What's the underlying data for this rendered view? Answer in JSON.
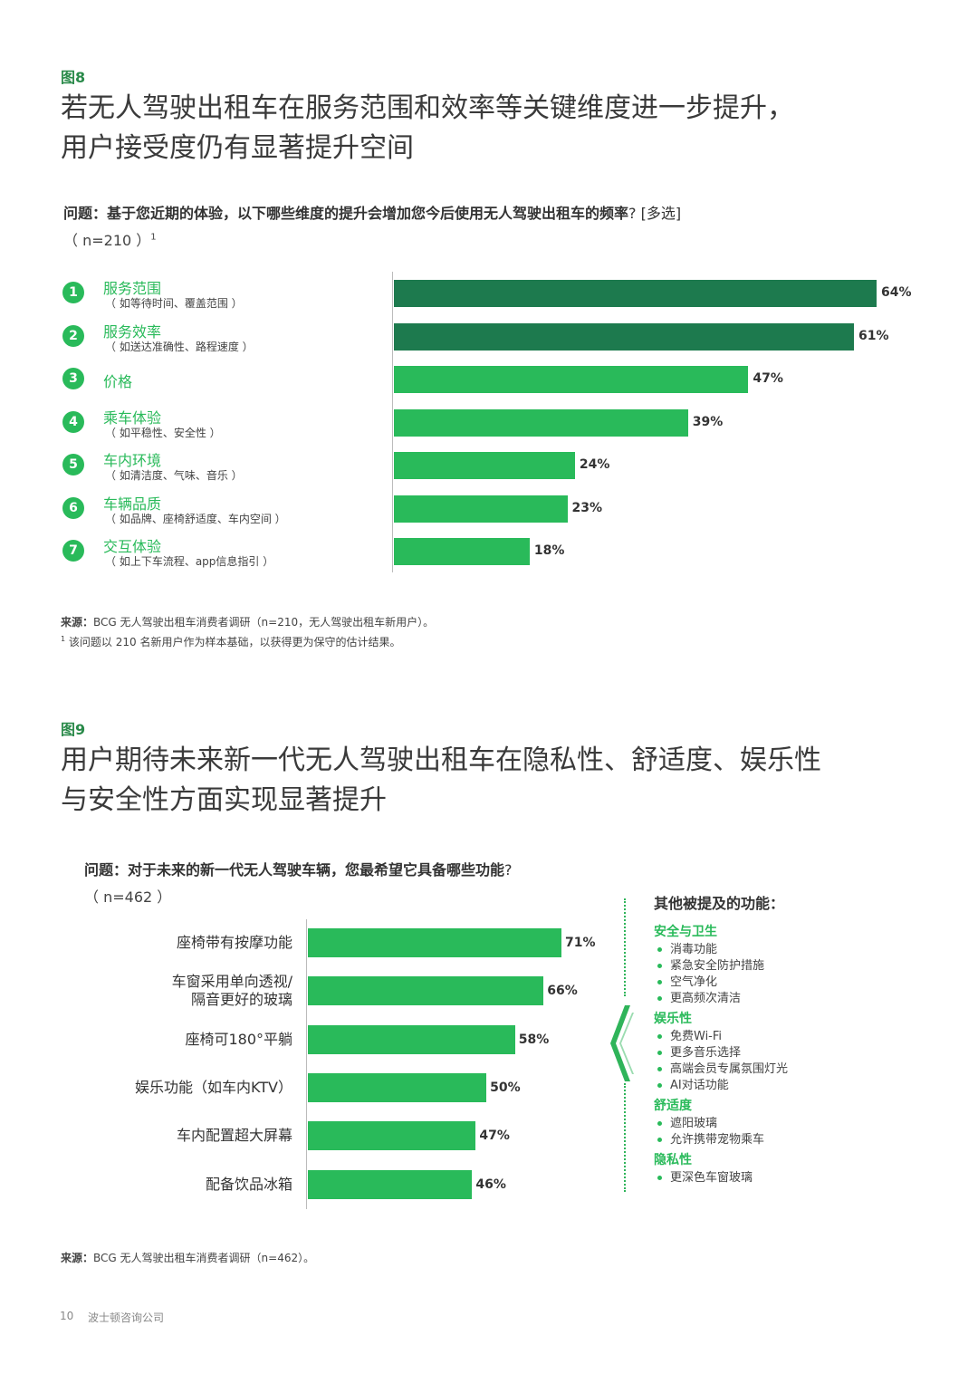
{
  "fig8": {
    "label": "图8",
    "headline_line1": "若无人驾驶出租车在服务范围和效率等关键维度进一步提升，",
    "headline_line2": "用户接受度仍有显著提升空间",
    "question": "问题：基于您近期的体验，以下哪些维度的提升会增加您今后使用无人驾驶出租车的频率",
    "question_tail": "? [多选]",
    "n_text": "（ n=210 ）",
    "n_sup": "1",
    "source_label": "来源：",
    "source_text": "BCG 无人驾驶出租车消费者调研（n=210，无人驾驶出租车新用户）。",
    "footnote_sup": "1",
    "footnote_text": "该问题以 210 名新用户作为样本基础，以获得更为保守的估计结果。",
    "colors": {
      "dark": "#1d7a4e",
      "light": "#29ba5a"
    }
  },
  "fig9": {
    "label": "图9",
    "headline_line1": "用户期待未来新一代无人驾驶出租车在隐私性、舒适度、娱乐性",
    "headline_line2": "与安全性方面实现显著提升",
    "question": "问题：对于未来的新一代无人驾驶车辆，您最希望它具备哪些功能",
    "question_tail": "?",
    "n_text": "（ n=462 ）",
    "source_label": "来源：",
    "source_text": "BCG 无人驾驶出租车消费者调研（n=462）。",
    "side_title": "其他被提及的功能：",
    "side_groups": [
      {
        "title": "安全与卫生",
        "items": [
          "消毒功能",
          "紧急安全防护措施",
          "空气净化",
          "更高频次清洁"
        ]
      },
      {
        "title": "娱乐性",
        "items": [
          "免费Wi-Fi",
          "更多音乐选择",
          "高端会员专属氛围灯光",
          "AI对话功能"
        ]
      },
      {
        "title": "舒适度",
        "items": [
          "遮阳玻璃",
          "允许携带宠物乘车"
        ]
      },
      {
        "title": "隐私性",
        "items": [
          "更深色车窗玻璃"
        ]
      }
    ]
  },
  "chart_data": [
    {
      "type": "bar",
      "orientation": "horizontal",
      "categories": [
        "服务范围",
        "服务效率",
        "价格",
        "乘车体验",
        "车内环境",
        "车辆品质",
        "交互体验"
      ],
      "ranks": [
        "1",
        "2",
        "3",
        "4",
        "5",
        "6",
        "7"
      ],
      "subtitles": [
        "（ 如等待时间、覆盖范围 ）",
        "（ 如送达准确性、路程速度 ）",
        "",
        "（ 如平稳性、安全性 ）",
        "（ 如清洁度、气味、音乐 ）",
        "（ 如品牌、座椅舒适度、车内空间 ）",
        "（ 如上下车流程、app信息指引 ）"
      ],
      "values": [
        64,
        61,
        47,
        39,
        24,
        23,
        18
      ],
      "labels": [
        "64%",
        "61%",
        "47%",
        "39%",
        "24%",
        "23%",
        "18%"
      ],
      "highlight": [
        true,
        true,
        false,
        false,
        false,
        false,
        false
      ],
      "unit": "%",
      "xlim": [
        0,
        64
      ]
    },
    {
      "type": "bar",
      "orientation": "horizontal",
      "categories": [
        "座椅带有按摩功能",
        "车窗采用单向透视/\n隔音更好的玻璃",
        "座椅可180°平躺",
        "娱乐功能（如车内KTV）",
        "车内配置超大屏幕",
        "配备饮品冰箱"
      ],
      "values": [
        71,
        66,
        58,
        50,
        47,
        46
      ],
      "labels": [
        "71%",
        "66%",
        "58%",
        "50%",
        "47%",
        "46%"
      ],
      "unit": "%",
      "xlim": [
        0,
        71
      ]
    }
  ],
  "footer": {
    "page_number": "10",
    "firm": "波士顿咨询公司"
  }
}
